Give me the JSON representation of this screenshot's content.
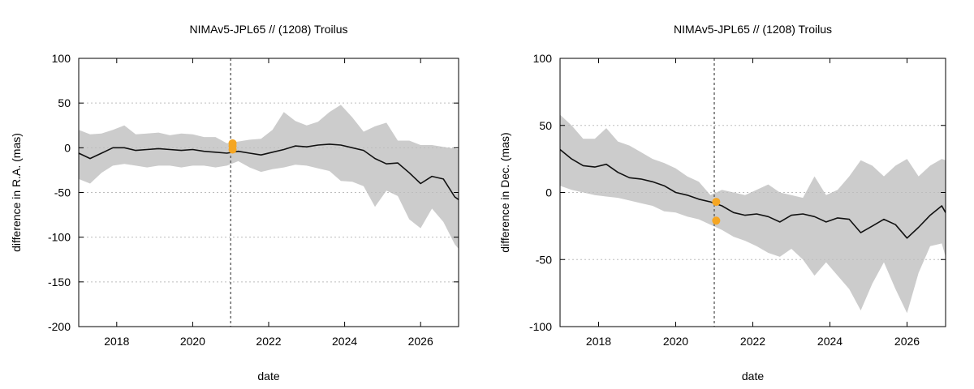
{
  "chart_data": [
    {
      "type": "line",
      "title": "NIMAv5-JPL65 // (1208) Troilus",
      "xlabel": "date",
      "ylabel": "difference in R.A. (mas)",
      "xlim": [
        2017.0,
        2027.0
      ],
      "ylim": [
        -200,
        100
      ],
      "xticks": [
        2018,
        2020,
        2022,
        2024,
        2026
      ],
      "yticks": [
        -200,
        -150,
        -100,
        -50,
        0,
        50,
        100
      ],
      "grid": "horizontal dashed",
      "marker_date": 2021.0,
      "series": [
        {
          "x": [
            2017.0,
            2017.3,
            2017.6,
            2017.9,
            2018.2,
            2018.5,
            2018.8,
            2019.1,
            2019.4,
            2019.7,
            2020.0,
            2020.3,
            2020.6,
            2020.9,
            2021.2,
            2021.5,
            2021.8,
            2022.1,
            2022.4,
            2022.7,
            2023.0,
            2023.3,
            2023.6,
            2023.9,
            2024.2,
            2024.5,
            2024.8,
            2025.1,
            2025.4,
            2025.7,
            2026.0,
            2026.3,
            2026.6,
            2026.9,
            2027.0
          ],
          "y": [
            -6,
            -12,
            -6,
            0,
            0,
            -3,
            -2,
            -1,
            -2,
            -3,
            -2,
            -4,
            -5,
            -6,
            -4,
            -6,
            -8,
            -5,
            -2,
            2,
            1,
            3,
            4,
            3,
            0,
            -3,
            -12,
            -18,
            -17,
            -28,
            -40,
            -32,
            -35,
            -55,
            -58
          ],
          "lower": [
            -35,
            -40,
            -28,
            -20,
            -18,
            -20,
            -22,
            -20,
            -20,
            -22,
            -20,
            -20,
            -22,
            -20,
            -15,
            -22,
            -27,
            -24,
            -22,
            -19,
            -20,
            -23,
            -26,
            -37,
            -38,
            -43,
            -66,
            -48,
            -54,
            -80,
            -90,
            -68,
            -83,
            -108,
            -113
          ],
          "upper": [
            20,
            15,
            16,
            20,
            25,
            15,
            16,
            17,
            14,
            16,
            15,
            12,
            12,
            5,
            7,
            9,
            10,
            20,
            40,
            30,
            25,
            29,
            40,
            48,
            34,
            18,
            24,
            28,
            8,
            8,
            3,
            3,
            1,
            -1,
            -2
          ]
        }
      ],
      "observations": [
        {
          "x": 2021.05,
          "y": 5
        },
        {
          "x": 2021.05,
          "y": 2
        },
        {
          "x": 2021.05,
          "y": -2
        }
      ]
    },
    {
      "type": "line",
      "title": "NIMAv5-JPL65 // (1208) Troilus",
      "xlabel": "date",
      "ylabel": "difference in Dec. (mas)",
      "xlim": [
        2017.0,
        2027.0
      ],
      "ylim": [
        -100,
        100
      ],
      "xticks": [
        2018,
        2020,
        2022,
        2024,
        2026
      ],
      "yticks": [
        -100,
        -50,
        0,
        50,
        100
      ],
      "grid": "horizontal dashed",
      "marker_date": 2021.0,
      "series": [
        {
          "x": [
            2017.0,
            2017.3,
            2017.6,
            2017.9,
            2018.2,
            2018.5,
            2018.8,
            2019.1,
            2019.4,
            2019.7,
            2020.0,
            2020.3,
            2020.6,
            2020.9,
            2021.2,
            2021.5,
            2021.8,
            2022.1,
            2022.4,
            2022.7,
            2023.0,
            2023.3,
            2023.6,
            2023.9,
            2024.2,
            2024.5,
            2024.8,
            2025.1,
            2025.4,
            2025.7,
            2026.0,
            2026.3,
            2026.6,
            2026.9,
            2027.0
          ],
          "y": [
            32,
            25,
            20,
            19,
            21,
            15,
            11,
            10,
            8,
            5,
            0,
            -2,
            -5,
            -7,
            -10,
            -15,
            -17,
            -16,
            -18,
            -22,
            -17,
            -16,
            -18,
            -22,
            -19,
            -20,
            -30,
            -25,
            -20,
            -24,
            -34,
            -26,
            -17,
            -10,
            -15
          ],
          "lower": [
            5,
            2,
            0,
            -2,
            -3,
            -4,
            -6,
            -8,
            -10,
            -14,
            -15,
            -18,
            -20,
            -24,
            -28,
            -33,
            -36,
            -40,
            -45,
            -48,
            -42,
            -50,
            -62,
            -52,
            -62,
            -72,
            -88,
            -68,
            -52,
            -72,
            -90,
            -60,
            -40,
            -38,
            -48
          ],
          "upper": [
            58,
            50,
            40,
            40,
            48,
            38,
            35,
            30,
            25,
            22,
            18,
            12,
            8,
            -2,
            2,
            0,
            -2,
            2,
            6,
            0,
            -2,
            -4,
            12,
            -2,
            2,
            12,
            24,
            20,
            12,
            20,
            25,
            12,
            20,
            25,
            24
          ]
        }
      ],
      "observations": [
        {
          "x": 2021.05,
          "y": -7
        },
        {
          "x": 2021.05,
          "y": -21
        }
      ]
    }
  ]
}
